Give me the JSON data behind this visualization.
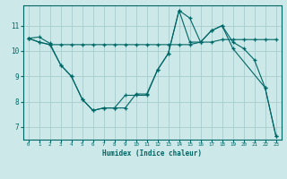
{
  "xlabel": "Humidex (Indice chaleur)",
  "bg_color": "#cce8e8",
  "grid_color": "#aacccc",
  "line_color": "#006666",
  "xlim": [
    -0.5,
    23.5
  ],
  "ylim": [
    6.5,
    11.8
  ],
  "xticks": [
    0,
    1,
    2,
    3,
    4,
    5,
    6,
    7,
    8,
    9,
    10,
    11,
    12,
    13,
    14,
    15,
    16,
    17,
    18,
    19,
    20,
    21,
    22,
    23
  ],
  "yticks": [
    7,
    8,
    9,
    10,
    11
  ],
  "series1_x": [
    0,
    1,
    2,
    3,
    4,
    5,
    6,
    7,
    8,
    9,
    10,
    11,
    12,
    13,
    14,
    15,
    16,
    17,
    18,
    19,
    20,
    21,
    22,
    23
  ],
  "series1_y": [
    10.5,
    10.55,
    10.3,
    9.45,
    9.0,
    8.1,
    7.65,
    7.75,
    7.75,
    7.75,
    8.3,
    8.3,
    9.25,
    9.9,
    11.6,
    11.3,
    10.35,
    10.8,
    11.0,
    10.35,
    10.1,
    9.65,
    8.55,
    6.65
  ],
  "series2_x": [
    0,
    1,
    2,
    3,
    4,
    5,
    6,
    7,
    8,
    9,
    10,
    11,
    12,
    13,
    14,
    15,
    16,
    17,
    18,
    19,
    20,
    21,
    22,
    23
  ],
  "series2_y": [
    10.5,
    10.35,
    10.25,
    10.25,
    10.25,
    10.25,
    10.25,
    10.25,
    10.25,
    10.25,
    10.25,
    10.25,
    10.25,
    10.25,
    10.25,
    10.25,
    10.35,
    10.35,
    10.45,
    10.45,
    10.45,
    10.45,
    10.45,
    10.45
  ],
  "series3_x": [
    0,
    1,
    2,
    3,
    4,
    5,
    6,
    7,
    8,
    9,
    10,
    11,
    12,
    13,
    14,
    15,
    16,
    17,
    18,
    19,
    22,
    23
  ],
  "series3_y": [
    10.5,
    10.35,
    10.25,
    9.45,
    9.0,
    8.1,
    7.65,
    7.75,
    7.75,
    8.25,
    8.25,
    8.25,
    9.25,
    9.9,
    11.6,
    10.35,
    10.35,
    10.8,
    11.0,
    10.1,
    8.55,
    6.65
  ]
}
